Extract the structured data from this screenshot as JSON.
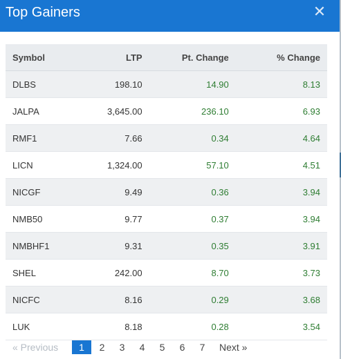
{
  "modal": {
    "title": "Top Gainers",
    "close_icon": "✕"
  },
  "table": {
    "headers": [
      "Symbol",
      "LTP",
      "Pt. Change",
      "% Change"
    ],
    "rows": [
      [
        "DLBS",
        "198.10",
        "14.90",
        "8.13"
      ],
      [
        "JALPA",
        "3,645.00",
        "236.10",
        "6.93"
      ],
      [
        "RMF1",
        "7.66",
        "0.34",
        "4.64"
      ],
      [
        "LICN",
        "1,324.00",
        "57.10",
        "4.51"
      ],
      [
        "NICGF",
        "9.49",
        "0.36",
        "3.94"
      ],
      [
        "NMB50",
        "9.77",
        "0.37",
        "3.94"
      ],
      [
        "NMBHF1",
        "9.31",
        "0.35",
        "3.91"
      ],
      [
        "SHEL",
        "242.00",
        "8.70",
        "3.73"
      ],
      [
        "NICFC",
        "8.16",
        "0.29",
        "3.68"
      ],
      [
        "LUK",
        "8.18",
        "0.28",
        "3.54"
      ]
    ]
  },
  "pagination": {
    "previous": "« Previous",
    "pages": [
      "1",
      "2",
      "3",
      "4",
      "5",
      "6",
      "7"
    ],
    "active_page": "1",
    "next": "Next »"
  },
  "colors": {
    "header": "#1976d2",
    "gain": "#2e7d32",
    "active_page": "#1976d2"
  }
}
